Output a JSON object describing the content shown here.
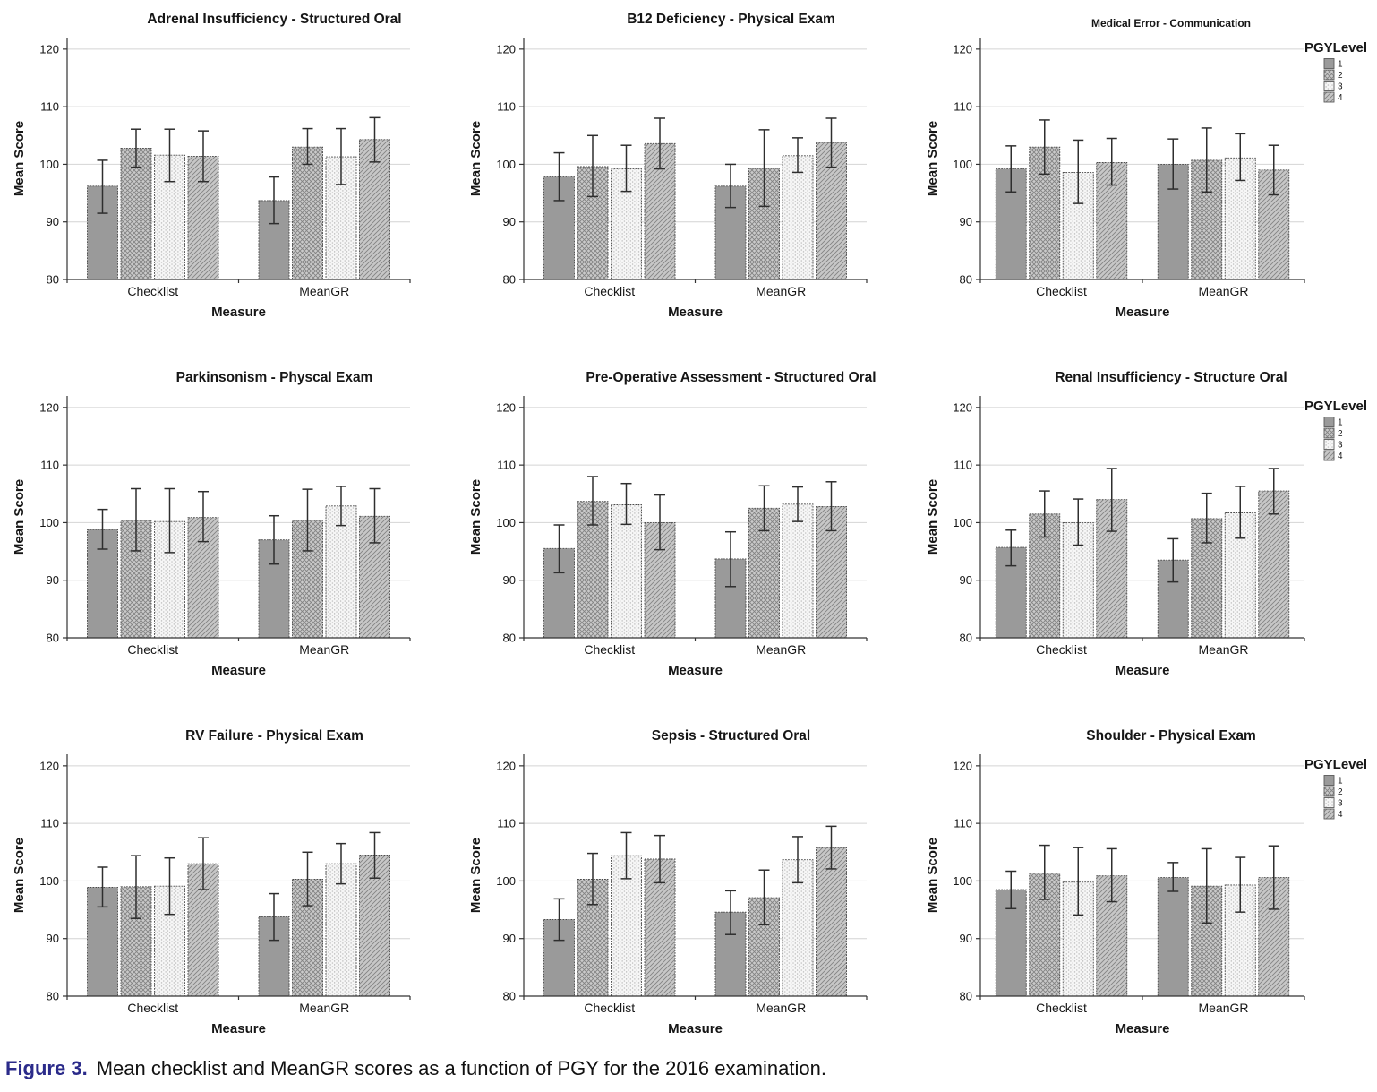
{
  "figure_caption": {
    "label": "Figure 3.",
    "text": "Mean checklist and MeanGR scores as a function of PGY for the 2016 examination."
  },
  "legend": {
    "title": "PGYLevel",
    "items": [
      "1",
      "2",
      "3",
      "4"
    ]
  },
  "axis_defaults": {
    "xlabel": "Measure",
    "ylabel": "Mean Score",
    "categories": [
      "Checklist",
      "MeanGR"
    ],
    "yticks": [
      80,
      90,
      100,
      110,
      120
    ],
    "ylim": [
      80,
      122
    ]
  },
  "colors": {
    "bar1": "#9a9a9a",
    "bar2_bg": "#cacaca",
    "bar3_bg": "#f6f6f6",
    "bar4_bg": "#c7c7c7",
    "hatch": "#838383",
    "grid": "#d4d4d4",
    "axis": "#333333",
    "error": "#2e2e2e",
    "caption_accent": "#2b2b8a"
  },
  "chart_data": [
    {
      "type": "bar",
      "title": "Adrenal Insufficiency - Structured Oral",
      "show_legend": false,
      "title_small": false,
      "xlabel": "Measure",
      "ylabel": "Mean Score",
      "categories": [
        "Checklist",
        "MeanGR"
      ],
      "yticks": [
        80,
        90,
        100,
        110,
        120
      ],
      "ylim": [
        80,
        122
      ],
      "series": [
        {
          "name": "1",
          "values": [
            96.2,
            93.7
          ],
          "err_low": [
            91.5,
            89.7
          ],
          "err_high": [
            100.7,
            97.8
          ]
        },
        {
          "name": "2",
          "values": [
            102.8,
            103.0
          ],
          "err_low": [
            99.5,
            100.0
          ],
          "err_high": [
            106.1,
            106.2
          ]
        },
        {
          "name": "3",
          "values": [
            101.6,
            101.3
          ],
          "err_low": [
            97.0,
            96.5
          ],
          "err_high": [
            106.1,
            106.2
          ]
        },
        {
          "name": "4",
          "values": [
            101.4,
            104.3
          ],
          "err_low": [
            97.0,
            100.4
          ],
          "err_high": [
            105.8,
            108.1
          ]
        }
      ]
    },
    {
      "type": "bar",
      "title": "B12 Deficiency - Physical Exam",
      "show_legend": false,
      "title_small": false,
      "xlabel": "Measure",
      "ylabel": "Mean Score",
      "categories": [
        "Checklist",
        "MeanGR"
      ],
      "yticks": [
        80,
        90,
        100,
        110,
        120
      ],
      "ylim": [
        80,
        122
      ],
      "series": [
        {
          "name": "1",
          "values": [
            97.8,
            96.2
          ],
          "err_low": [
            93.7,
            92.5
          ],
          "err_high": [
            102.0,
            100.0
          ]
        },
        {
          "name": "2",
          "values": [
            99.6,
            99.3
          ],
          "err_low": [
            94.4,
            92.7
          ],
          "err_high": [
            105.0,
            106.0
          ]
        },
        {
          "name": "3",
          "values": [
            99.2,
            101.5
          ],
          "err_low": [
            95.3,
            98.6
          ],
          "err_high": [
            103.3,
            104.6
          ]
        },
        {
          "name": "4",
          "values": [
            103.6,
            103.8
          ],
          "err_low": [
            99.2,
            99.5
          ],
          "err_high": [
            108.0,
            108.0
          ]
        }
      ]
    },
    {
      "type": "bar",
      "title": "Medical Error - Communication",
      "show_legend": true,
      "title_small": true,
      "xlabel": "Measure",
      "ylabel": "Mean Score",
      "categories": [
        "Checklist",
        "MeanGR"
      ],
      "yticks": [
        80,
        90,
        100,
        110,
        120
      ],
      "ylim": [
        80,
        122
      ],
      "series": [
        {
          "name": "1",
          "values": [
            99.2,
            100.0
          ],
          "err_low": [
            95.2,
            95.7
          ],
          "err_high": [
            103.2,
            104.4
          ]
        },
        {
          "name": "2",
          "values": [
            103.0,
            100.7
          ],
          "err_low": [
            98.3,
            95.2
          ],
          "err_high": [
            107.7,
            106.3
          ]
        },
        {
          "name": "3",
          "values": [
            98.6,
            101.1
          ],
          "err_low": [
            93.2,
            97.2
          ],
          "err_high": [
            104.2,
            105.3
          ]
        },
        {
          "name": "4",
          "values": [
            100.3,
            99.0
          ],
          "err_low": [
            96.4,
            94.7
          ],
          "err_high": [
            104.5,
            103.3
          ]
        }
      ]
    },
    {
      "type": "bar",
      "title": "Parkinsonism - Physcal Exam",
      "show_legend": false,
      "title_small": false,
      "xlabel": "Measure",
      "ylabel": "Mean Score",
      "categories": [
        "Checklist",
        "MeanGR"
      ],
      "yticks": [
        80,
        90,
        100,
        110,
        120
      ],
      "ylim": [
        80,
        122
      ],
      "series": [
        {
          "name": "1",
          "values": [
            98.8,
            97.0
          ],
          "err_low": [
            95.4,
            92.8
          ],
          "err_high": [
            102.3,
            101.2
          ]
        },
        {
          "name": "2",
          "values": [
            100.4,
            100.4
          ],
          "err_low": [
            95.1,
            95.1
          ],
          "err_high": [
            105.9,
            105.8
          ]
        },
        {
          "name": "3",
          "values": [
            100.2,
            102.9
          ],
          "err_low": [
            94.8,
            99.5
          ],
          "err_high": [
            105.9,
            106.3
          ]
        },
        {
          "name": "4",
          "values": [
            100.9,
            101.1
          ],
          "err_low": [
            96.7,
            96.5
          ],
          "err_high": [
            105.4,
            105.9
          ]
        }
      ]
    },
    {
      "type": "bar",
      "title": "Pre-Operative Assessment - Structured Oral",
      "show_legend": false,
      "title_small": false,
      "xlabel": "Measure",
      "ylabel": "Mean Score",
      "categories": [
        "Checklist",
        "MeanGR"
      ],
      "yticks": [
        80,
        90,
        100,
        110,
        120
      ],
      "ylim": [
        80,
        122
      ],
      "series": [
        {
          "name": "1",
          "values": [
            95.5,
            93.7
          ],
          "err_low": [
            91.3,
            88.9
          ],
          "err_high": [
            99.6,
            98.4
          ]
        },
        {
          "name": "2",
          "values": [
            103.7,
            102.5
          ],
          "err_low": [
            99.6,
            98.6
          ],
          "err_high": [
            108.0,
            106.4
          ]
        },
        {
          "name": "3",
          "values": [
            103.1,
            103.2
          ],
          "err_low": [
            99.7,
            100.2
          ],
          "err_high": [
            106.8,
            106.2
          ]
        },
        {
          "name": "4",
          "values": [
            100.0,
            102.8
          ],
          "err_low": [
            95.3,
            98.6
          ],
          "err_high": [
            104.8,
            107.1
          ]
        }
      ]
    },
    {
      "type": "bar",
      "title": "Renal Insufficiency - Structure Oral",
      "show_legend": true,
      "title_small": false,
      "xlabel": "Measure",
      "ylabel": "Mean Score",
      "categories": [
        "Checklist",
        "MeanGR"
      ],
      "yticks": [
        80,
        90,
        100,
        110,
        120
      ],
      "ylim": [
        80,
        122
      ],
      "series": [
        {
          "name": "1",
          "values": [
            95.7,
            93.5
          ],
          "err_low": [
            92.5,
            89.7
          ],
          "err_high": [
            98.7,
            97.2
          ]
        },
        {
          "name": "2",
          "values": [
            101.5,
            100.7
          ],
          "err_low": [
            97.5,
            96.5
          ],
          "err_high": [
            105.5,
            105.1
          ]
        },
        {
          "name": "3",
          "values": [
            100.0,
            101.7
          ],
          "err_low": [
            96.1,
            97.3
          ],
          "err_high": [
            104.1,
            106.3
          ]
        },
        {
          "name": "4",
          "values": [
            104.0,
            105.5
          ],
          "err_low": [
            98.5,
            101.5
          ],
          "err_high": [
            109.4,
            109.4
          ]
        }
      ]
    },
    {
      "type": "bar",
      "title": "RV Failure - Physical Exam",
      "show_legend": false,
      "title_small": false,
      "xlabel": "Measure",
      "ylabel": "Mean Score",
      "categories": [
        "Checklist",
        "MeanGR"
      ],
      "yticks": [
        80,
        90,
        100,
        110,
        120
      ],
      "ylim": [
        80,
        122
      ],
      "series": [
        {
          "name": "1",
          "values": [
            98.9,
            93.8
          ],
          "err_low": [
            95.5,
            89.7
          ],
          "err_high": [
            102.4,
            97.8
          ]
        },
        {
          "name": "2",
          "values": [
            99.0,
            100.3
          ],
          "err_low": [
            93.5,
            95.7
          ],
          "err_high": [
            104.4,
            105.0
          ]
        },
        {
          "name": "3",
          "values": [
            99.1,
            103.0
          ],
          "err_low": [
            94.2,
            99.5
          ],
          "err_high": [
            104.0,
            106.5
          ]
        },
        {
          "name": "4",
          "values": [
            103.0,
            104.5
          ],
          "err_low": [
            98.5,
            100.5
          ],
          "err_high": [
            107.5,
            108.4
          ]
        }
      ]
    },
    {
      "type": "bar",
      "title": "Sepsis - Structured Oral",
      "show_legend": false,
      "title_small": false,
      "xlabel": "Measure",
      "ylabel": "Mean Score",
      "categories": [
        "Checklist",
        "MeanGR"
      ],
      "yticks": [
        80,
        90,
        100,
        110,
        120
      ],
      "ylim": [
        80,
        122
      ],
      "series": [
        {
          "name": "1",
          "values": [
            93.3,
            94.6
          ],
          "err_low": [
            89.7,
            90.7
          ],
          "err_high": [
            96.9,
            98.3
          ]
        },
        {
          "name": "2",
          "values": [
            100.3,
            97.1
          ],
          "err_low": [
            95.9,
            92.4
          ],
          "err_high": [
            104.8,
            101.9
          ]
        },
        {
          "name": "3",
          "values": [
            104.4,
            103.7
          ],
          "err_low": [
            100.4,
            99.7
          ],
          "err_high": [
            108.4,
            107.7
          ]
        },
        {
          "name": "4",
          "values": [
            103.8,
            105.8
          ],
          "err_low": [
            99.7,
            102.1
          ],
          "err_high": [
            107.9,
            109.5
          ]
        }
      ]
    },
    {
      "type": "bar",
      "title": "Shoulder - Physical Exam",
      "show_legend": true,
      "title_small": false,
      "xlabel": "Measure",
      "ylabel": "Mean Score",
      "categories": [
        "Checklist",
        "MeanGR"
      ],
      "yticks": [
        80,
        90,
        100,
        110,
        120
      ],
      "ylim": [
        80,
        122
      ],
      "series": [
        {
          "name": "1",
          "values": [
            98.5,
            100.6
          ],
          "err_low": [
            95.2,
            98.2
          ],
          "err_high": [
            101.7,
            103.2
          ]
        },
        {
          "name": "2",
          "values": [
            101.4,
            99.1
          ],
          "err_low": [
            96.8,
            92.7
          ],
          "err_high": [
            106.2,
            105.6
          ]
        },
        {
          "name": "3",
          "values": [
            99.8,
            99.3
          ],
          "err_low": [
            94.1,
            94.6
          ],
          "err_high": [
            105.8,
            104.1
          ]
        },
        {
          "name": "4",
          "values": [
            100.9,
            100.6
          ],
          "err_low": [
            96.4,
            95.1
          ],
          "err_high": [
            105.6,
            106.1
          ]
        }
      ]
    }
  ]
}
